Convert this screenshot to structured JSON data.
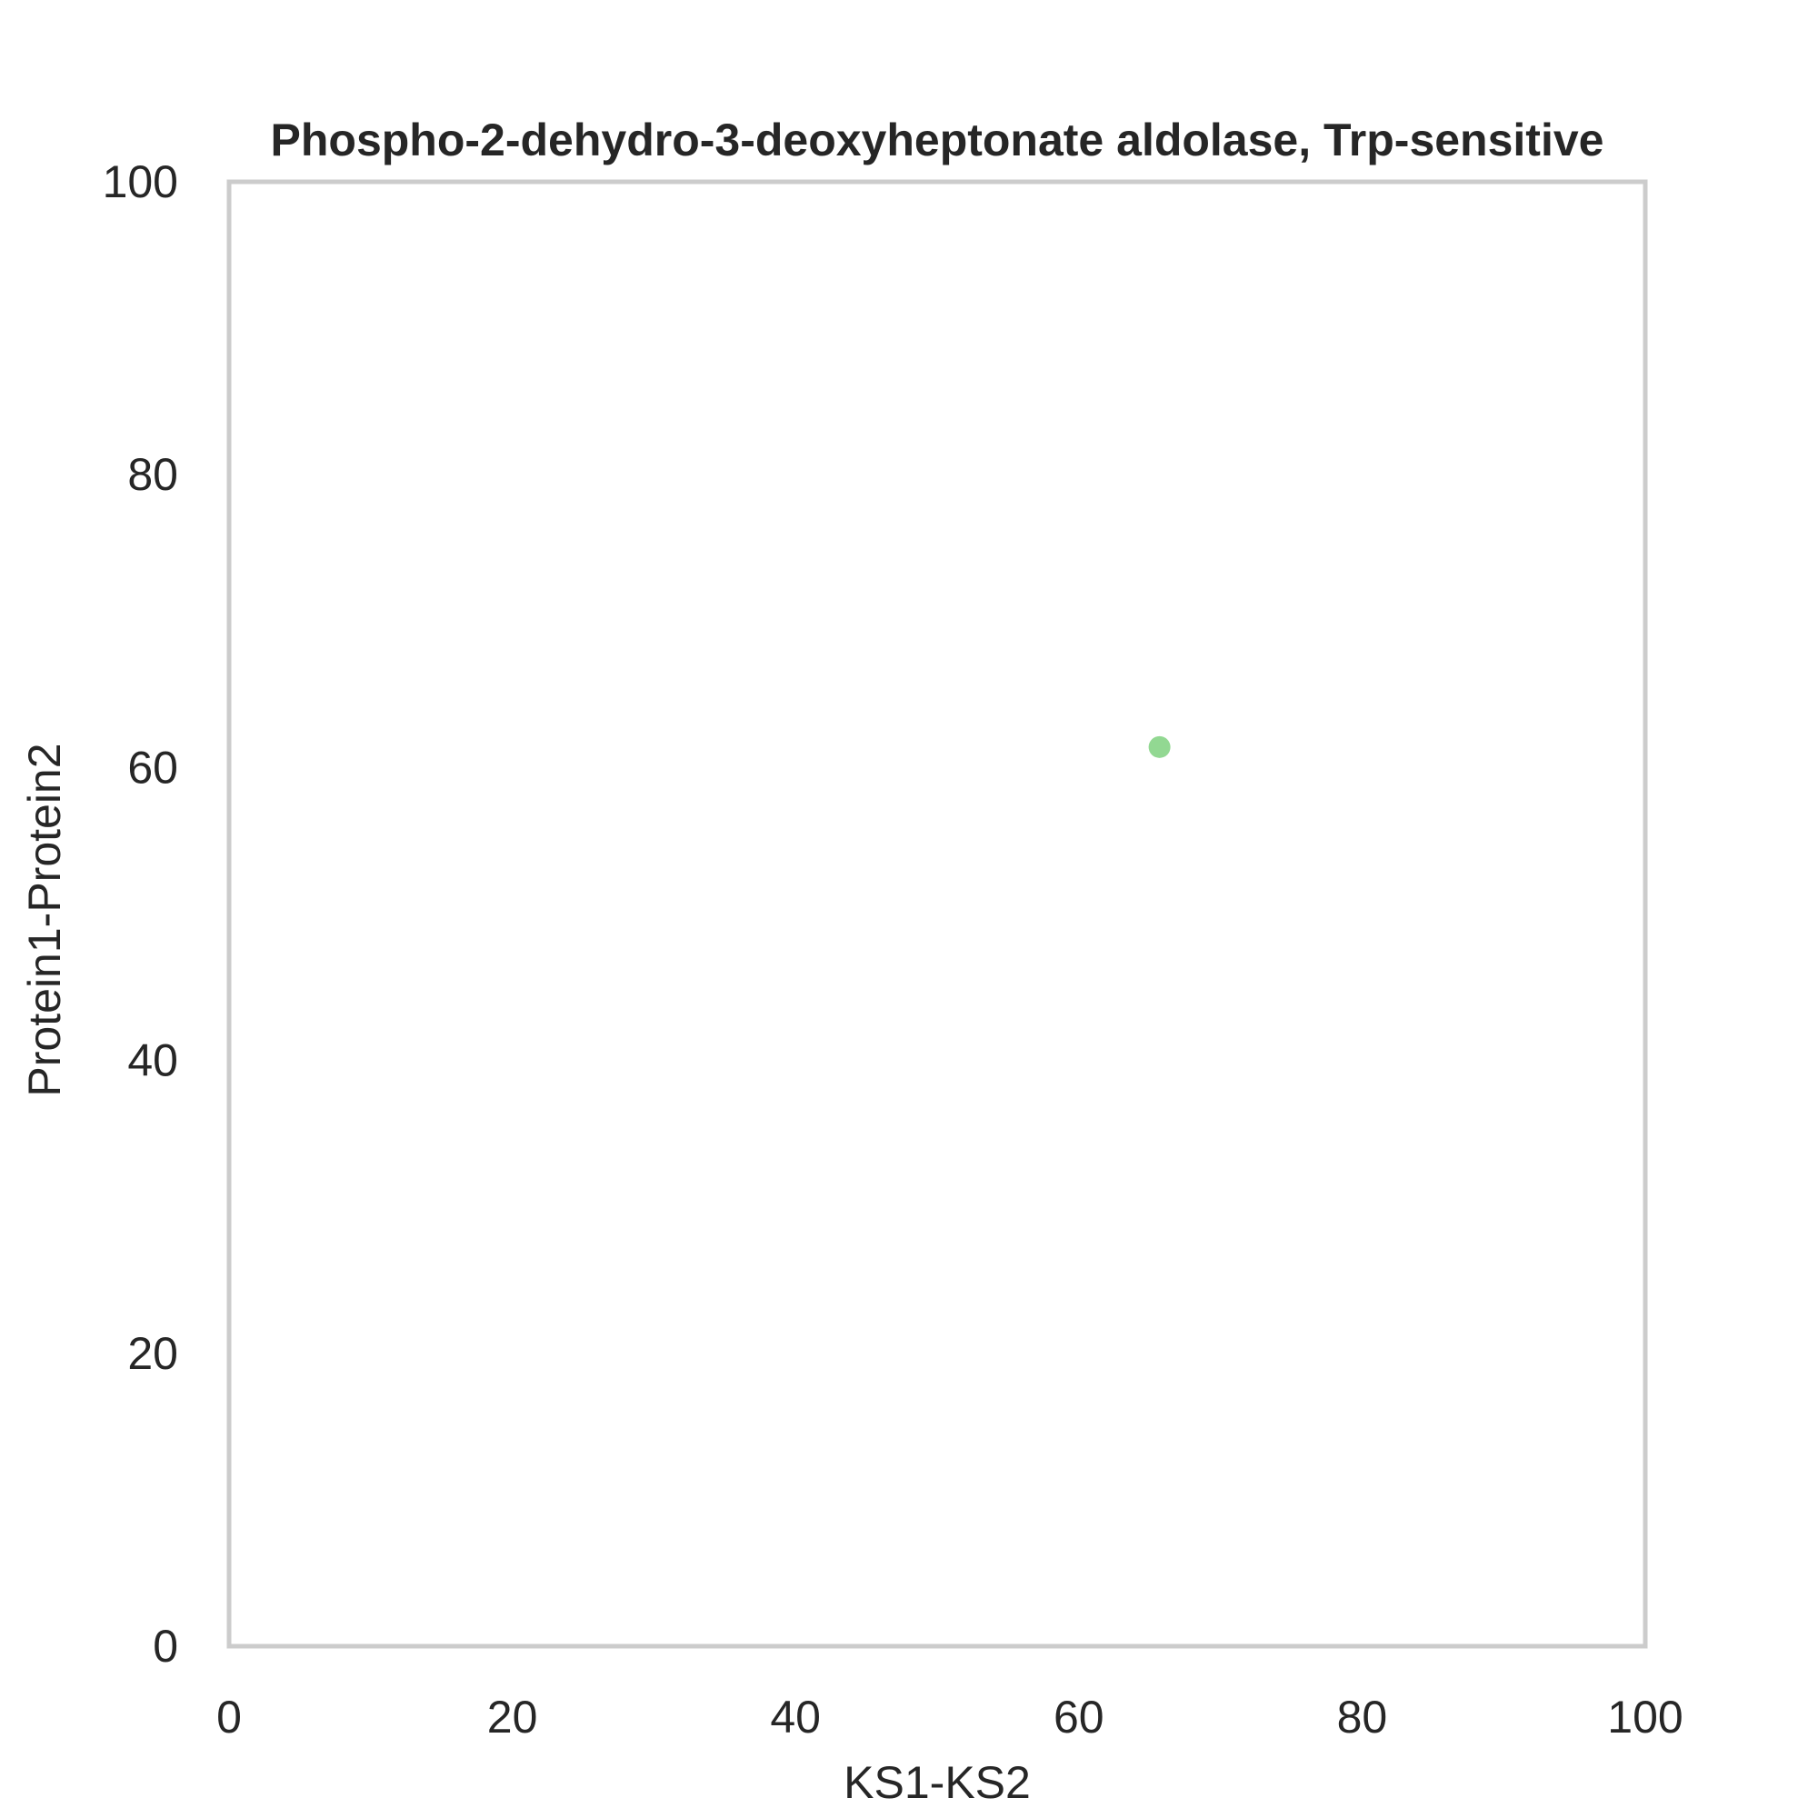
{
  "chart_data": {
    "type": "scatter",
    "title": "Phospho-2-dehydro-3-deoxyheptonate aldolase, Trp-sensitive",
    "xlabel": "KS1-KS2",
    "ylabel": "Protein1-Protein2",
    "xlim": [
      0,
      100
    ],
    "ylim": [
      0,
      100
    ],
    "x_ticks": [
      "0",
      "20",
      "40",
      "60",
      "80",
      "100"
    ],
    "y_ticks": [
      "0",
      "20",
      "40",
      "60",
      "80",
      "100"
    ],
    "grid": false,
    "series": [
      {
        "color": "#7fd17f",
        "points": [
          {
            "x": 65.7,
            "y": 61.4
          }
        ]
      }
    ],
    "frame_color": "#cccccc"
  }
}
